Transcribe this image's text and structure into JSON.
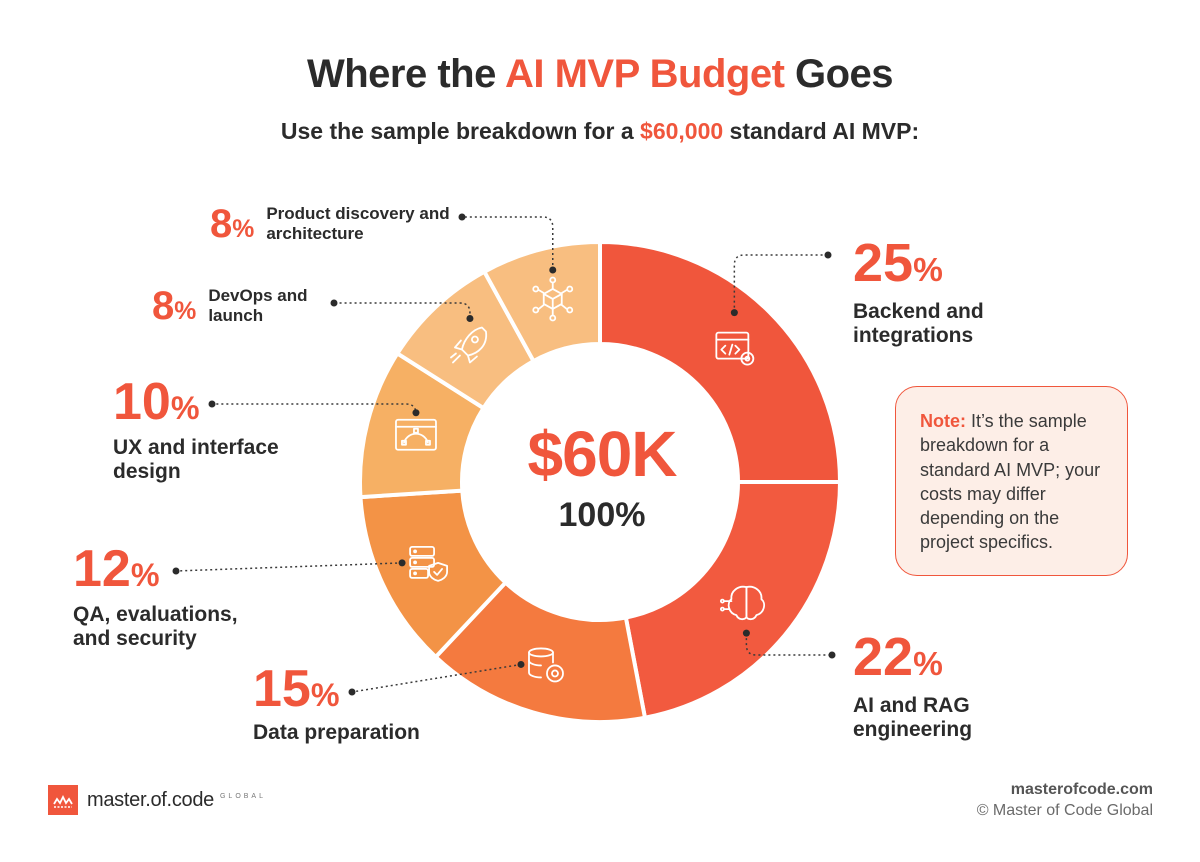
{
  "header": {
    "title_pre": "Where the ",
    "title_accent": "AI MVP Budget",
    "title_post": " Goes",
    "subtitle_pre": "Use the sample breakdown for a ",
    "subtitle_accent": "$60,000",
    "subtitle_post": " standard AI MVP:"
  },
  "center": {
    "value": "$60K",
    "label": "100%"
  },
  "note": {
    "label": "Note:",
    "text": " It’s the sample breakdown for a standard AI MVP; your costs may differ depending on the project specifics."
  },
  "chart_data": {
    "type": "pie",
    "total": 60000,
    "unit_symbol": "%",
    "slices": [
      {
        "name": "Backend and integrations",
        "value": 25,
        "color": "#f0563c",
        "icon": "code-window-gear-icon"
      },
      {
        "name": "AI and RAG engineering",
        "value": 22,
        "color": "#f25a3f",
        "icon": "brain-circuit-icon"
      },
      {
        "name": "Data preparation",
        "value": 15,
        "color": "#f47a3f",
        "icon": "database-gear-icon"
      },
      {
        "name": "QA, evaluations, and security",
        "value": 12,
        "color": "#f39346",
        "icon": "server-shield-icon"
      },
      {
        "name": "UX and interface design",
        "value": 10,
        "color": "#f6b064",
        "icon": "design-window-icon"
      },
      {
        "name": "DevOps and launch",
        "value": 8,
        "color": "#f8be80",
        "icon": "rocket-icon"
      },
      {
        "name": "Product discovery and architecture",
        "value": 8,
        "color": "#f8be80",
        "icon": "cube-network-icon"
      }
    ]
  },
  "labels": [
    {
      "num": "25",
      "sym": "%",
      "desc": "Backend and integrations"
    },
    {
      "num": "22",
      "sym": "%",
      "desc": "AI and RAG engineering"
    },
    {
      "num": "15",
      "sym": "%",
      "desc": "Data preparation"
    },
    {
      "num": "12",
      "sym": "%",
      "desc": "QA, evaluations, and security"
    },
    {
      "num": "10",
      "sym": "%",
      "desc": "UX and interface design"
    },
    {
      "num": "8",
      "sym": "%",
      "desc": "DevOps and launch"
    },
    {
      "num": "8",
      "sym": "%",
      "desc": "Product discovery and architecture"
    }
  ],
  "footer": {
    "brand": "master.of.code",
    "brand_tag": "GLOBAL",
    "site": "masterofcode.com",
    "copyright": "© Master of Code Global"
  }
}
